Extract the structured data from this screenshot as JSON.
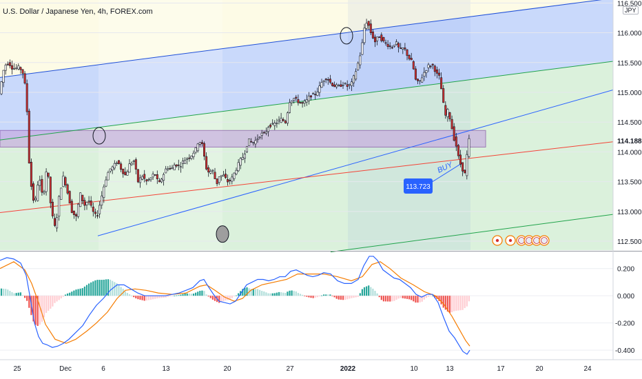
{
  "header": {
    "title": "U.S. Dollar / Japanese Yen, 4h, FOREX.com",
    "currency": "JPY"
  },
  "colors": {
    "up": "#ffffff",
    "down": "#d32f2f",
    "wick": "#131722",
    "macd": "#2962ff",
    "signal": "#f57c00",
    "hist_up": "#26a69a",
    "hist_down": "#ef5350",
    "channel_top": "#1e4fd8",
    "channel_mid": "#1fa34a",
    "trend": "#2962ff",
    "red_line": "#f44336",
    "zone": "#c7a9e0",
    "band_blue": "#c9d9fb",
    "band_green": "#dbf1dc",
    "band_yellow": "#fdfbe6",
    "price_tag": "#1e4fd8",
    "buy_tag": "#2962ff"
  },
  "chart_data": [
    {
      "type": "candlestick",
      "title": "U.S. Dollar / Japanese Yen, 4h, FOREX.com",
      "currency": "JPY",
      "y_ticks": [
        112.5,
        113.0,
        113.5,
        114.0,
        114.5,
        115.0,
        115.5,
        116.0,
        116.5
      ],
      "y_tick_labels": [
        "112.500",
        "113.000",
        "113.500",
        "114.000",
        "114.500",
        "115.000",
        "115.500",
        "116.000",
        "116.500"
      ],
      "ylim": [
        112.35,
        116.55
      ],
      "x_ticks": [
        "25",
        "Dec",
        "6",
        "13",
        "20",
        "27",
        "2022",
        "10",
        "13",
        "17",
        "20",
        "24"
      ],
      "last_price": "114.188",
      "last_price_value": 114.188,
      "buy_label": "BUY",
      "buy_price": "113.723",
      "buy_price_value": 113.723,
      "path": [
        [
          0,
          114.95
        ],
        [
          8,
          115.45
        ],
        [
          14,
          115.5
        ],
        [
          20,
          115.4
        ],
        [
          30,
          115.42
        ],
        [
          36,
          115.3
        ],
        [
          40,
          114.9
        ],
        [
          44,
          113.8
        ],
        [
          48,
          113.3
        ],
        [
          52,
          113.1
        ],
        [
          58,
          113.6
        ],
        [
          64,
          113.2
        ],
        [
          70,
          113.8
        ],
        [
          76,
          113.0
        ],
        [
          82,
          112.7
        ],
        [
          88,
          113.3
        ],
        [
          94,
          113.6
        ],
        [
          100,
          113.3
        ],
        [
          106,
          113.0
        ],
        [
          112,
          112.9
        ],
        [
          118,
          113.3
        ],
        [
          124,
          113.1
        ],
        [
          130,
          113.2
        ],
        [
          136,
          113.0
        ],
        [
          142,
          112.9
        ],
        [
          148,
          113.2
        ],
        [
          154,
          113.5
        ],
        [
          160,
          113.7
        ],
        [
          166,
          113.75
        ],
        [
          172,
          113.85
        ],
        [
          178,
          113.7
        ],
        [
          184,
          113.6
        ],
        [
          190,
          113.8
        ],
        [
          196,
          113.85
        ],
        [
          202,
          113.5
        ],
        [
          208,
          113.6
        ],
        [
          214,
          113.5
        ],
        [
          220,
          113.55
        ],
        [
          226,
          113.65
        ],
        [
          232,
          113.45
        ],
        [
          238,
          113.6
        ],
        [
          244,
          113.75
        ],
        [
          250,
          113.7
        ],
        [
          256,
          113.8
        ],
        [
          262,
          113.75
        ],
        [
          268,
          113.85
        ],
        [
          274,
          113.9
        ],
        [
          280,
          113.95
        ],
        [
          286,
          114.05
        ],
        [
          290,
          114.2
        ],
        [
          296,
          114.1
        ],
        [
          300,
          113.75
        ],
        [
          305,
          113.65
        ],
        [
          310,
          113.7
        ],
        [
          316,
          113.45
        ],
        [
          320,
          113.6
        ],
        [
          326,
          113.6
        ],
        [
          332,
          113.5
        ],
        [
          338,
          113.55
        ],
        [
          344,
          113.7
        ],
        [
          350,
          113.85
        ],
        [
          356,
          113.95
        ],
        [
          362,
          114.2
        ],
        [
          368,
          114.15
        ],
        [
          374,
          114.2
        ],
        [
          380,
          114.3
        ],
        [
          386,
          114.3
        ],
        [
          392,
          114.45
        ],
        [
          398,
          114.45
        ],
        [
          404,
          114.5
        ],
        [
          410,
          114.55
        ],
        [
          416,
          114.5
        ],
        [
          422,
          114.85
        ],
        [
          428,
          114.9
        ],
        [
          434,
          114.85
        ],
        [
          440,
          114.8
        ],
        [
          446,
          114.85
        ],
        [
          452,
          114.95
        ],
        [
          458,
          114.95
        ],
        [
          464,
          115.05
        ],
        [
          470,
          115.2
        ],
        [
          476,
          115.25
        ],
        [
          482,
          115.15
        ],
        [
          488,
          115.1
        ],
        [
          494,
          115.1
        ],
        [
          500,
          115.15
        ],
        [
          506,
          115.1
        ],
        [
          512,
          115.15
        ],
        [
          518,
          115.35
        ],
        [
          524,
          115.6
        ],
        [
          528,
          115.85
        ],
        [
          532,
          116.2
        ],
        [
          536,
          116.15
        ],
        [
          540,
          116.0
        ],
        [
          546,
          115.85
        ],
        [
          552,
          115.95
        ],
        [
          558,
          115.85
        ],
        [
          564,
          115.8
        ],
        [
          570,
          115.75
        ],
        [
          576,
          115.85
        ],
        [
          582,
          115.7
        ],
        [
          588,
          115.75
        ],
        [
          594,
          115.6
        ],
        [
          600,
          115.5
        ],
        [
          606,
          115.15
        ],
        [
          612,
          115.2
        ],
        [
          618,
          115.35
        ],
        [
          624,
          115.45
        ],
        [
          630,
          115.45
        ],
        [
          636,
          115.3
        ],
        [
          640,
          115.25
        ],
        [
          644,
          114.9
        ],
        [
          648,
          114.6
        ],
        [
          652,
          114.7
        ],
        [
          656,
          114.5
        ],
        [
          660,
          114.25
        ],
        [
          664,
          114.1
        ],
        [
          668,
          113.85
        ],
        [
          672,
          113.75
        ],
        [
          676,
          113.6
        ],
        [
          680,
          114.0
        ],
        [
          682,
          114.2
        ]
      ]
    },
    {
      "type": "line",
      "indicator": "MACD",
      "y_ticks": [
        0.2,
        0.0,
        -0.2,
        -0.4
      ],
      "y_tick_labels": [
        "0.200",
        "0.000",
        "-0.200",
        "-0.400"
      ],
      "ylim": [
        -0.46,
        0.32
      ],
      "series": [
        {
          "values": [
            [
              0,
              0.26
            ],
            [
              10,
              0.28
            ],
            [
              20,
              0.27
            ],
            [
              30,
              0.24
            ],
            [
              38,
              0.15
            ],
            [
              44,
              -0.02
            ],
            [
              50,
              -0.2
            ],
            [
              56,
              -0.3
            ],
            [
              62,
              -0.35
            ],
            [
              68,
              -0.36
            ],
            [
              76,
              -0.38
            ],
            [
              84,
              -0.37
            ],
            [
              92,
              -0.35
            ],
            [
              100,
              -0.32
            ],
            [
              110,
              -0.27
            ],
            [
              120,
              -0.22
            ],
            [
              130,
              -0.14
            ],
            [
              140,
              -0.07
            ],
            [
              150,
              -0.02
            ],
            [
              160,
              0.04
            ],
            [
              170,
              0.08
            ],
            [
              180,
              0.08
            ],
            [
              190,
              0.05
            ],
            [
              200,
              0.02
            ],
            [
              210,
              0.0
            ],
            [
              220,
              0.0
            ],
            [
              230,
              0.0
            ],
            [
              240,
              0.0
            ],
            [
              250,
              0.01
            ],
            [
              260,
              0.02
            ],
            [
              270,
              0.04
            ],
            [
              280,
              0.06
            ],
            [
              290,
              0.11
            ],
            [
              296,
              0.12
            ],
            [
              302,
              0.07
            ],
            [
              310,
              0.01
            ],
            [
              318,
              -0.04
            ],
            [
              326,
              -0.05
            ],
            [
              334,
              -0.06
            ],
            [
              342,
              -0.04
            ],
            [
              350,
              0.02
            ],
            [
              358,
              0.08
            ],
            [
              366,
              0.1
            ],
            [
              374,
              0.12
            ],
            [
              382,
              0.12
            ],
            [
              390,
              0.11
            ],
            [
              398,
              0.12
            ],
            [
              406,
              0.14
            ],
            [
              414,
              0.14
            ],
            [
              422,
              0.18
            ],
            [
              430,
              0.19
            ],
            [
              438,
              0.17
            ],
            [
              446,
              0.15
            ],
            [
              454,
              0.14
            ],
            [
              462,
              0.15
            ],
            [
              470,
              0.17
            ],
            [
              480,
              0.16
            ],
            [
              490,
              0.11
            ],
            [
              500,
              0.09
            ],
            [
              510,
              0.09
            ],
            [
              520,
              0.12
            ],
            [
              528,
              0.22
            ],
            [
              536,
              0.29
            ],
            [
              542,
              0.29
            ],
            [
              548,
              0.26
            ],
            [
              556,
              0.19
            ],
            [
              564,
              0.16
            ],
            [
              572,
              0.13
            ],
            [
              580,
              0.12
            ],
            [
              588,
              0.09
            ],
            [
              596,
              0.06
            ],
            [
              604,
              0.01
            ],
            [
              612,
              -0.01
            ],
            [
              620,
              0.01
            ],
            [
              628,
              0.01
            ],
            [
              636,
              -0.05
            ],
            [
              644,
              -0.16
            ],
            [
              652,
              -0.26
            ],
            [
              660,
              -0.31
            ],
            [
              666,
              -0.36
            ],
            [
              672,
              -0.41
            ],
            [
              678,
              -0.43
            ],
            [
              682,
              -0.4
            ]
          ]
        },
        {
          "values": [
            [
              0,
              0.2
            ],
            [
              20,
              0.25
            ],
            [
              36,
              0.19
            ],
            [
              46,
              0.09
            ],
            [
              56,
              -0.05
            ],
            [
              66,
              -0.21
            ],
            [
              80,
              -0.32
            ],
            [
              96,
              -0.35
            ],
            [
              110,
              -0.32
            ],
            [
              126,
              -0.26
            ],
            [
              140,
              -0.2
            ],
            [
              156,
              -0.12
            ],
            [
              170,
              -0.02
            ],
            [
              182,
              0.04
            ],
            [
              196,
              0.05
            ],
            [
              212,
              0.04
            ],
            [
              230,
              0.02
            ],
            [
              250,
              0.01
            ],
            [
              270,
              0.02
            ],
            [
              290,
              0.07
            ],
            [
              300,
              0.08
            ],
            [
              312,
              0.04
            ],
            [
              326,
              -0.01
            ],
            [
              340,
              -0.04
            ],
            [
              352,
              -0.02
            ],
            [
              364,
              0.04
            ],
            [
              380,
              0.08
            ],
            [
              398,
              0.1
            ],
            [
              416,
              0.12
            ],
            [
              432,
              0.16
            ],
            [
              450,
              0.16
            ],
            [
              470,
              0.16
            ],
            [
              490,
              0.14
            ],
            [
              510,
              0.11
            ],
            [
              526,
              0.14
            ],
            [
              540,
              0.23
            ],
            [
              552,
              0.25
            ],
            [
              566,
              0.2
            ],
            [
              582,
              0.13
            ],
            [
              600,
              0.08
            ],
            [
              616,
              0.03
            ],
            [
              632,
              0.0
            ],
            [
              644,
              -0.06
            ],
            [
              656,
              -0.15
            ],
            [
              666,
              -0.24
            ],
            [
              676,
              -0.33
            ],
            [
              682,
              -0.37
            ]
          ]
        }
      ]
    }
  ]
}
